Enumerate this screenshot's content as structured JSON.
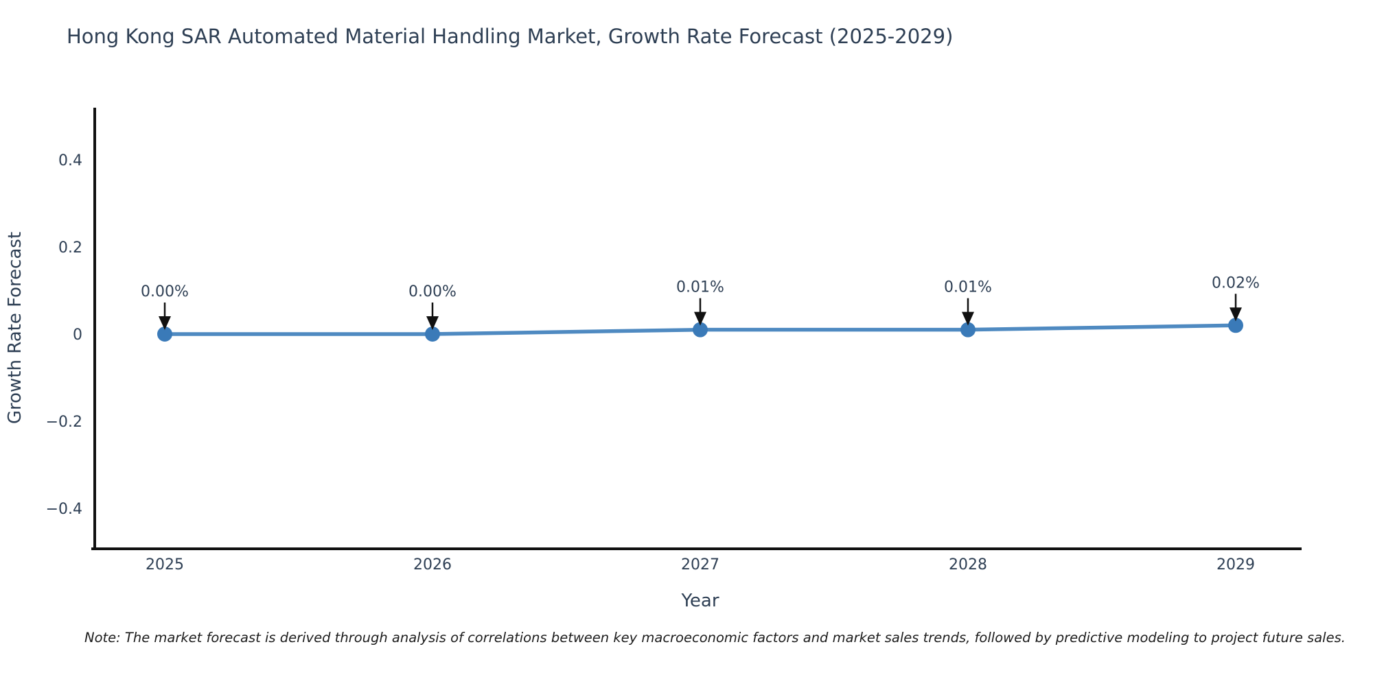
{
  "page": {
    "background": "#ffffff"
  },
  "chart_data": {
    "type": "line",
    "title": "Hong Kong SAR Automated Material Handling Market, Growth Rate Forecast (2025-2029)",
    "xlabel": "Year",
    "ylabel": "Growth Rate Forecast",
    "x": [
      2025,
      2026,
      2027,
      2028,
      2029
    ],
    "x_tick_labels": [
      "2025",
      "2026",
      "2027",
      "2028",
      "2029"
    ],
    "series": [
      {
        "name": "Growth Rate Forecast",
        "values": [
          0.0,
          0.0,
          0.01,
          0.01,
          0.02
        ]
      }
    ],
    "point_labels": [
      "0.00%",
      "0.00%",
      "0.01%",
      "0.01%",
      "0.02%"
    ],
    "yticks": [
      0.4,
      0.2,
      0,
      -0.2,
      -0.4
    ],
    "ytick_labels": [
      "0.4",
      "0.2",
      "0",
      "−0.2",
      "−0.4"
    ],
    "ylim": [
      -0.5,
      0.52
    ],
    "xlim": [
      2024.74,
      2029.25
    ],
    "grid": false,
    "legend": false,
    "marker": "circle",
    "annotation_arrows": true,
    "note": "Note: The market forecast is derived through analysis of correlations between key macroeconomic factors and market sales trends, followed by predictive modeling to project future sales.",
    "colors": {
      "line": "#4f8ac1",
      "marker": "#3a7ab8",
      "text": "#2e3f54",
      "axis": "#111111",
      "arrow": "#111111",
      "note": "#1c1c1c"
    }
  }
}
